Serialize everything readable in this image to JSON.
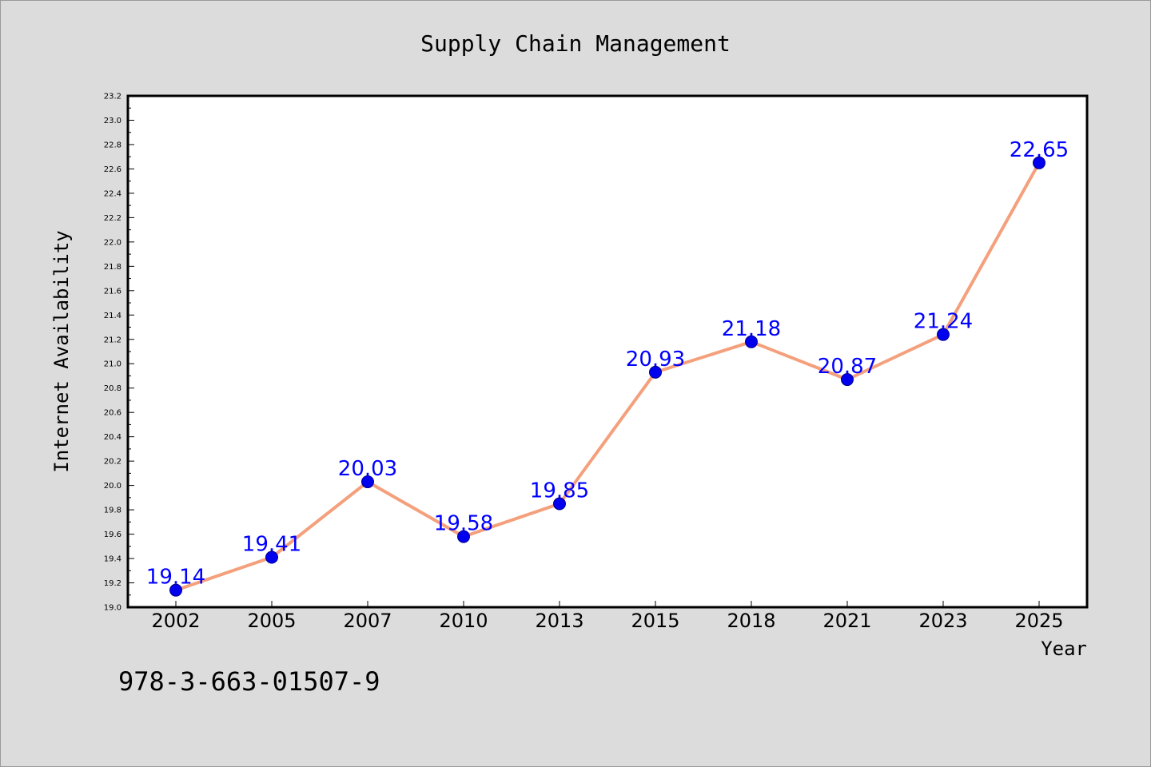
{
  "footer": {
    "code": "978-3-663-01507-9"
  },
  "colors": {
    "background": "#dcdcdc",
    "plot_background": "#ffffff",
    "line": "#f4a07c",
    "marker": "#0000ee",
    "data_label": "#0000ff"
  },
  "chart_data": {
    "type": "line",
    "title": "Supply Chain Management",
    "xlabel": "Year",
    "ylabel": "Internet Availability",
    "categories": [
      "2002",
      "2005",
      "2007",
      "2010",
      "2013",
      "2015",
      "2018",
      "2021",
      "2023",
      "2025"
    ],
    "series": [
      {
        "values": [
          19.14,
          19.41,
          20.03,
          19.58,
          19.85,
          20.93,
          21.18,
          20.87,
          21.24,
          22.65
        ],
        "data_labels": [
          "19.14",
          "19.41",
          "20.03",
          "19.58",
          "19.85",
          "20.93",
          "21.18",
          "20.87",
          "21.24",
          "22.65"
        ]
      }
    ],
    "yticks": [
      "19.0",
      "19.2",
      "19.4",
      "19.6",
      "19.8",
      "20.0",
      "20.2",
      "20.4",
      "20.6",
      "20.8",
      "21.0",
      "21.2",
      "21.4",
      "21.6",
      "21.8",
      "22.0",
      "22.2",
      "22.4",
      "22.6",
      "22.8",
      "23.0",
      "23.2"
    ],
    "ylim": [
      19.0,
      23.2
    ],
    "grid": false,
    "legend": "none"
  }
}
